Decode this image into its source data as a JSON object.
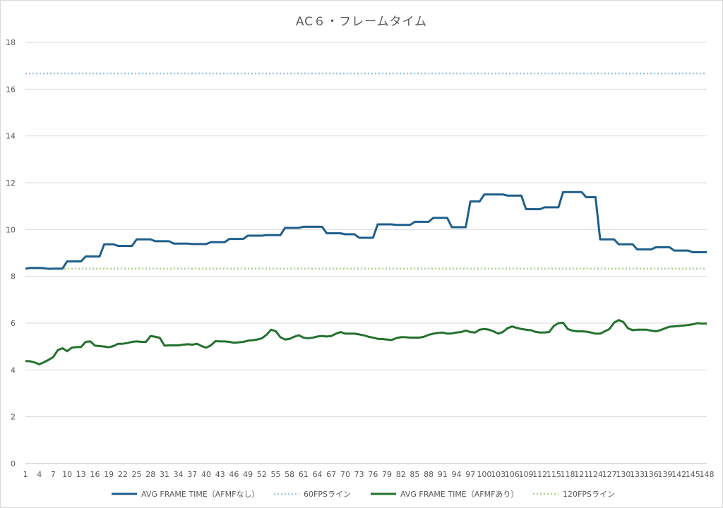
{
  "chart_data": {
    "type": "line",
    "title": "AC６・フレームタイム",
    "xlabel": "",
    "ylabel": "",
    "ylim": [
      0,
      18
    ],
    "yticks": [
      0,
      2,
      4,
      6,
      8,
      10,
      12,
      14,
      16,
      18
    ],
    "xlim": [
      1,
      148
    ],
    "xticks": [
      1,
      4,
      7,
      10,
      13,
      16,
      19,
      22,
      25,
      28,
      31,
      34,
      37,
      40,
      43,
      46,
      49,
      52,
      55,
      58,
      61,
      64,
      67,
      70,
      73,
      76,
      79,
      82,
      85,
      88,
      91,
      94,
      97,
      100,
      103,
      106,
      109,
      112,
      115,
      118,
      121,
      124,
      127,
      130,
      133,
      136,
      139,
      142,
      145,
      148
    ],
    "grid": "horizontal",
    "legend_position": "bottom",
    "series": [
      {
        "name": "AVG FRAME TIME（AFMFなし）",
        "color": "#1f5f8b",
        "style": "solid",
        "points": [
          [
            1,
            8.33
          ],
          [
            2,
            8.36
          ],
          [
            3,
            8.36
          ],
          [
            4,
            8.36
          ],
          [
            5,
            8.35
          ],
          [
            6,
            8.32
          ],
          [
            7,
            8.33
          ],
          [
            8,
            8.33
          ],
          [
            9,
            8.33
          ],
          [
            10,
            8.64
          ],
          [
            11,
            8.64
          ],
          [
            12,
            8.64
          ],
          [
            13,
            8.64
          ],
          [
            14,
            8.85
          ],
          [
            15,
            8.85
          ],
          [
            16,
            8.85
          ],
          [
            17,
            8.85
          ],
          [
            18,
            9.37
          ],
          [
            19,
            9.37
          ],
          [
            20,
            9.37
          ],
          [
            21,
            9.3
          ],
          [
            22,
            9.3
          ],
          [
            23,
            9.3
          ],
          [
            24,
            9.3
          ],
          [
            25,
            9.58
          ],
          [
            26,
            9.58
          ],
          [
            27,
            9.58
          ],
          [
            28,
            9.58
          ],
          [
            29,
            9.5
          ],
          [
            30,
            9.5
          ],
          [
            31,
            9.5
          ],
          [
            32,
            9.5
          ],
          [
            33,
            9.4
          ],
          [
            34,
            9.4
          ],
          [
            35,
            9.4
          ],
          [
            36,
            9.4
          ],
          [
            37,
            9.38
          ],
          [
            38,
            9.38
          ],
          [
            39,
            9.38
          ],
          [
            40,
            9.38
          ],
          [
            41,
            9.46
          ],
          [
            42,
            9.46
          ],
          [
            43,
            9.46
          ],
          [
            44,
            9.46
          ],
          [
            45,
            9.6
          ],
          [
            46,
            9.6
          ],
          [
            47,
            9.6
          ],
          [
            48,
            9.6
          ],
          [
            49,
            9.74
          ],
          [
            50,
            9.74
          ],
          [
            51,
            9.74
          ],
          [
            52,
            9.74
          ],
          [
            53,
            9.76
          ],
          [
            54,
            9.76
          ],
          [
            55,
            9.76
          ],
          [
            56,
            9.76
          ],
          [
            57,
            10.07
          ],
          [
            58,
            10.07
          ],
          [
            59,
            10.07
          ],
          [
            60,
            10.07
          ],
          [
            61,
            10.12
          ],
          [
            62,
            10.12
          ],
          [
            63,
            10.12
          ],
          [
            64,
            10.12
          ],
          [
            65,
            10.12
          ],
          [
            66,
            9.84
          ],
          [
            67,
            9.84
          ],
          [
            68,
            9.84
          ],
          [
            69,
            9.84
          ],
          [
            70,
            9.8
          ],
          [
            71,
            9.8
          ],
          [
            72,
            9.8
          ],
          [
            73,
            9.65
          ],
          [
            74,
            9.65
          ],
          [
            75,
            9.65
          ],
          [
            76,
            9.65
          ],
          [
            77,
            10.22
          ],
          [
            78,
            10.22
          ],
          [
            79,
            10.22
          ],
          [
            80,
            10.22
          ],
          [
            81,
            10.2
          ],
          [
            82,
            10.2
          ],
          [
            83,
            10.2
          ],
          [
            84,
            10.2
          ],
          [
            85,
            10.33
          ],
          [
            86,
            10.33
          ],
          [
            87,
            10.33
          ],
          [
            88,
            10.33
          ],
          [
            89,
            10.5
          ],
          [
            90,
            10.5
          ],
          [
            91,
            10.5
          ],
          [
            92,
            10.5
          ],
          [
            93,
            10.1
          ],
          [
            94,
            10.1
          ],
          [
            95,
            10.1
          ],
          [
            96,
            10.1
          ],
          [
            97,
            11.2
          ],
          [
            98,
            11.2
          ],
          [
            99,
            11.2
          ],
          [
            100,
            11.5
          ],
          [
            101,
            11.5
          ],
          [
            102,
            11.5
          ],
          [
            103,
            11.5
          ],
          [
            104,
            11.5
          ],
          [
            105,
            11.45
          ],
          [
            106,
            11.45
          ],
          [
            107,
            11.45
          ],
          [
            108,
            11.45
          ],
          [
            109,
            10.87
          ],
          [
            110,
            10.87
          ],
          [
            111,
            10.87
          ],
          [
            112,
            10.87
          ],
          [
            113,
            10.95
          ],
          [
            114,
            10.95
          ],
          [
            115,
            10.95
          ],
          [
            116,
            10.95
          ],
          [
            117,
            11.6
          ],
          [
            118,
            11.6
          ],
          [
            119,
            11.6
          ],
          [
            120,
            11.6
          ],
          [
            121,
            11.6
          ],
          [
            122,
            11.38
          ],
          [
            123,
            11.38
          ],
          [
            124,
            11.38
          ],
          [
            125,
            9.58
          ],
          [
            126,
            9.58
          ],
          [
            127,
            9.58
          ],
          [
            128,
            9.58
          ],
          [
            129,
            9.37
          ],
          [
            130,
            9.37
          ],
          [
            131,
            9.37
          ],
          [
            132,
            9.37
          ],
          [
            133,
            9.15
          ],
          [
            134,
            9.15
          ],
          [
            135,
            9.15
          ],
          [
            136,
            9.15
          ],
          [
            137,
            9.24
          ],
          [
            138,
            9.24
          ],
          [
            139,
            9.24
          ],
          [
            140,
            9.24
          ],
          [
            141,
            9.1
          ],
          [
            142,
            9.1
          ],
          [
            143,
            9.1
          ],
          [
            144,
            9.1
          ],
          [
            145,
            9.03
          ],
          [
            146,
            9.03
          ],
          [
            147,
            9.03
          ],
          [
            148,
            9.03
          ]
        ]
      },
      {
        "name": "60FPSライン",
        "color": "#9dc3e6",
        "style": "dotted",
        "points": [
          [
            1,
            16.67
          ],
          [
            148,
            16.67
          ]
        ]
      },
      {
        "name": "AVG FRAME TIME（AFMFあり）",
        "color": "#23722e",
        "style": "solid",
        "points": [
          [
            1,
            4.38
          ],
          [
            2,
            4.37
          ],
          [
            3,
            4.32
          ],
          [
            4,
            4.24
          ],
          [
            5,
            4.33
          ],
          [
            6,
            4.43
          ],
          [
            7,
            4.55
          ],
          [
            8,
            4.85
          ],
          [
            9,
            4.93
          ],
          [
            10,
            4.8
          ],
          [
            11,
            4.95
          ],
          [
            12,
            4.98
          ],
          [
            13,
            4.98
          ],
          [
            14,
            5.2
          ],
          [
            15,
            5.22
          ],
          [
            16,
            5.04
          ],
          [
            17,
            5.02
          ],
          [
            18,
            5.0
          ],
          [
            19,
            4.97
          ],
          [
            20,
            5.02
          ],
          [
            21,
            5.12
          ],
          [
            22,
            5.12
          ],
          [
            23,
            5.15
          ],
          [
            24,
            5.2
          ],
          [
            25,
            5.22
          ],
          [
            26,
            5.2
          ],
          [
            27,
            5.2
          ],
          [
            28,
            5.45
          ],
          [
            29,
            5.42
          ],
          [
            30,
            5.37
          ],
          [
            31,
            5.04
          ],
          [
            32,
            5.05
          ],
          [
            33,
            5.05
          ],
          [
            34,
            5.05
          ],
          [
            35,
            5.08
          ],
          [
            36,
            5.1
          ],
          [
            37,
            5.08
          ],
          [
            38,
            5.12
          ],
          [
            39,
            5.02
          ],
          [
            40,
            4.95
          ],
          [
            41,
            5.05
          ],
          [
            42,
            5.23
          ],
          [
            43,
            5.22
          ],
          [
            44,
            5.22
          ],
          [
            45,
            5.2
          ],
          [
            46,
            5.16
          ],
          [
            47,
            5.18
          ],
          [
            48,
            5.2
          ],
          [
            49,
            5.25
          ],
          [
            50,
            5.27
          ],
          [
            51,
            5.3
          ],
          [
            52,
            5.35
          ],
          [
            53,
            5.5
          ],
          [
            54,
            5.72
          ],
          [
            55,
            5.66
          ],
          [
            56,
            5.4
          ],
          [
            57,
            5.3
          ],
          [
            58,
            5.33
          ],
          [
            59,
            5.42
          ],
          [
            60,
            5.48
          ],
          [
            61,
            5.38
          ],
          [
            62,
            5.35
          ],
          [
            63,
            5.38
          ],
          [
            64,
            5.43
          ],
          [
            65,
            5.45
          ],
          [
            66,
            5.43
          ],
          [
            67,
            5.45
          ],
          [
            68,
            5.55
          ],
          [
            69,
            5.62
          ],
          [
            70,
            5.55
          ],
          [
            71,
            5.55
          ],
          [
            72,
            5.55
          ],
          [
            73,
            5.52
          ],
          [
            74,
            5.48
          ],
          [
            75,
            5.42
          ],
          [
            76,
            5.38
          ],
          [
            77,
            5.33
          ],
          [
            78,
            5.32
          ],
          [
            79,
            5.3
          ],
          [
            80,
            5.28
          ],
          [
            81,
            5.36
          ],
          [
            82,
            5.4
          ],
          [
            83,
            5.4
          ],
          [
            84,
            5.38
          ],
          [
            85,
            5.38
          ],
          [
            86,
            5.38
          ],
          [
            87,
            5.42
          ],
          [
            88,
            5.5
          ],
          [
            89,
            5.55
          ],
          [
            90,
            5.58
          ],
          [
            91,
            5.6
          ],
          [
            92,
            5.55
          ],
          [
            93,
            5.56
          ],
          [
            94,
            5.6
          ],
          [
            95,
            5.62
          ],
          [
            96,
            5.68
          ],
          [
            97,
            5.62
          ],
          [
            98,
            5.6
          ],
          [
            99,
            5.72
          ],
          [
            100,
            5.75
          ],
          [
            101,
            5.72
          ],
          [
            102,
            5.65
          ],
          [
            103,
            5.55
          ],
          [
            104,
            5.62
          ],
          [
            105,
            5.78
          ],
          [
            106,
            5.86
          ],
          [
            107,
            5.8
          ],
          [
            108,
            5.75
          ],
          [
            109,
            5.72
          ],
          [
            110,
            5.7
          ],
          [
            111,
            5.63
          ],
          [
            112,
            5.6
          ],
          [
            113,
            5.6
          ],
          [
            114,
            5.62
          ],
          [
            115,
            5.88
          ],
          [
            116,
            6.0
          ],
          [
            117,
            6.02
          ],
          [
            118,
            5.75
          ],
          [
            119,
            5.68
          ],
          [
            120,
            5.65
          ],
          [
            121,
            5.65
          ],
          [
            122,
            5.64
          ],
          [
            123,
            5.6
          ],
          [
            124,
            5.55
          ],
          [
            125,
            5.55
          ],
          [
            126,
            5.65
          ],
          [
            127,
            5.75
          ],
          [
            128,
            6.02
          ],
          [
            129,
            6.13
          ],
          [
            130,
            6.05
          ],
          [
            131,
            5.78
          ],
          [
            132,
            5.7
          ],
          [
            133,
            5.72
          ],
          [
            134,
            5.72
          ],
          [
            135,
            5.72
          ],
          [
            136,
            5.68
          ],
          [
            137,
            5.65
          ],
          [
            138,
            5.7
          ],
          [
            139,
            5.78
          ],
          [
            140,
            5.85
          ],
          [
            141,
            5.86
          ],
          [
            142,
            5.88
          ],
          [
            143,
            5.9
          ],
          [
            144,
            5.92
          ],
          [
            145,
            5.95
          ],
          [
            146,
            6.0
          ],
          [
            147,
            5.98
          ],
          [
            148,
            5.98
          ]
        ]
      },
      {
        "name": "120FPSライン",
        "color": "#a9d18e",
        "style": "dotted",
        "points": [
          [
            1,
            8.33
          ],
          [
            148,
            8.33
          ]
        ]
      }
    ]
  }
}
